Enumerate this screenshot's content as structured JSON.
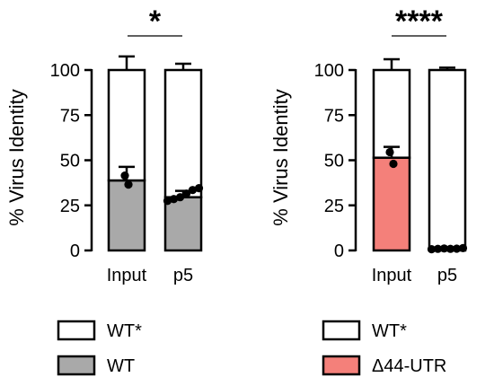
{
  "chart_data": [
    {
      "type": "bar",
      "stacked": true,
      "categories": [
        "Input",
        "p5"
      ],
      "ylabel": "% Virus Identity",
      "ylim": [
        0,
        100
      ],
      "yticks": [
        0,
        25,
        50,
        75,
        100
      ],
      "significance": "*",
      "series": [
        {
          "name": "WT",
          "color": "#a9a9a9",
          "values": [
            38.8,
            29.5
          ],
          "error": [
            7.5,
            3.5
          ],
          "points": [
            [
              41.5,
              36.5
            ],
            [
              27.5,
              28.5,
              29.5,
              31.5,
              33.5,
              34.5
            ]
          ]
        },
        {
          "name": "WT*",
          "color": "#ffffff",
          "values": [
            61.2,
            70.5
          ],
          "error": [
            7.5,
            3.5
          ],
          "points": []
        }
      ]
    },
    {
      "type": "bar",
      "stacked": true,
      "categories": [
        "Input",
        "p5"
      ],
      "ylabel": "% Virus Identity",
      "ylim": [
        0,
        100
      ],
      "yticks": [
        0,
        25,
        50,
        75,
        100
      ],
      "significance": "****",
      "series": [
        {
          "name": "Δ44-UTR",
          "color": "#f4807a",
          "values": [
            51.4,
            0.8
          ],
          "error": [
            6.0,
            0.8
          ],
          "points": [
            [
              54.5,
              48.0
            ],
            [
              0.7,
              0.9,
              1.1,
              0.9,
              1.0,
              1.3
            ]
          ]
        },
        {
          "name": "WT*",
          "color": "#ffffff",
          "values": [
            48.6,
            99.2
          ],
          "error": [
            6.0,
            1.3
          ],
          "points": []
        }
      ]
    }
  ],
  "legends": [
    [
      {
        "label": "WT*",
        "color": "#ffffff"
      },
      {
        "label": "WT",
        "color": "#a9a9a9"
      }
    ],
    [
      {
        "label": "WT*",
        "color": "#ffffff"
      },
      {
        "label": "Δ44-UTR",
        "color": "#f4807a"
      }
    ]
  ]
}
